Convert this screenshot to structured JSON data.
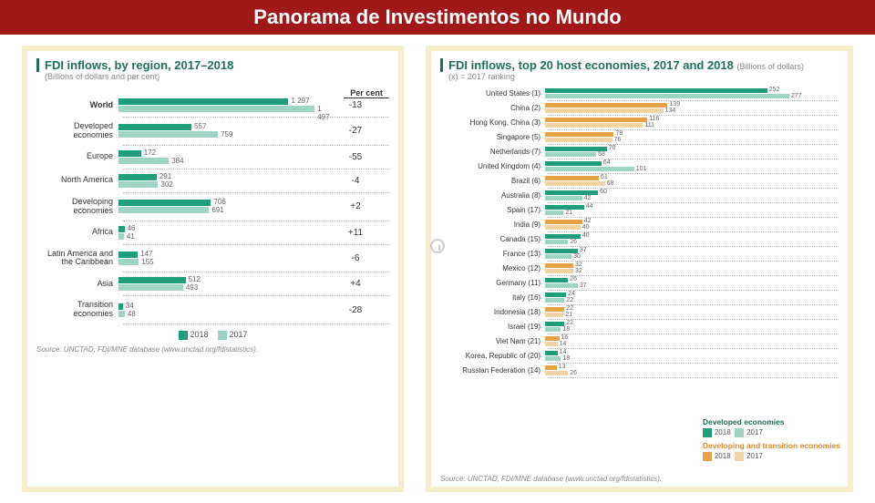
{
  "colors": {
    "header_bg": "#a01818",
    "accent": "#1e6f5c",
    "green2018": "#1e9e7a",
    "green2017": "#9fd3c3",
    "orange2018": "#e8a34a",
    "orange2017": "#f3d4a6",
    "border_cream": "#f5eecb",
    "text_muted": "#888888"
  },
  "header": {
    "title": "Panorama de Investimentos no Mundo"
  },
  "left": {
    "title": "FDI inflows, by region, 2017–2018",
    "subtitle": "(Billions of dollars and per cent)",
    "percent_header": "Per cent",
    "max": 1600,
    "rows": [
      {
        "label": "World",
        "bold": true,
        "v2018": 1297,
        "v2017": 1497,
        "pct": -13
      },
      {
        "label": "Developed\neconomies",
        "v2018": 557,
        "v2017": 759,
        "pct": -27
      },
      {
        "label": "Europe",
        "v2018": 172,
        "v2017": 384,
        "pct": -55
      },
      {
        "label": "North America",
        "v2018": 291,
        "v2017": 302,
        "pct": -4
      },
      {
        "label": "Developing\neconomies",
        "v2018": 706,
        "v2017": 691,
        "pct": 2
      },
      {
        "label": "Africa",
        "v2018": 46,
        "v2017": 41,
        "pct": 11
      },
      {
        "label": "Latin America and\nthe Caribbean",
        "v2018": 147,
        "v2017": 155,
        "pct": -6
      },
      {
        "label": "Asia",
        "v2018": 512,
        "v2017": 493,
        "pct": 4
      },
      {
        "label": "Transition\neconomies",
        "v2018": 34,
        "v2017": 48,
        "pct": -28
      }
    ],
    "legend": [
      {
        "swatch": "#1e9e7a",
        "label": "2018"
      },
      {
        "swatch": "#9fd3c3",
        "label": "2017"
      }
    ],
    "source": "Source: UNCTAD, FDI/MNE database (www.unctad.org/fdistatistics)."
  },
  "right": {
    "title": "FDI inflows, top 20 host economies, 2017 and 2018",
    "title_suffix": "(Billions of dollars)",
    "rank_note": "(x) = 2017 ranking",
    "max": 300,
    "rows": [
      {
        "label": "United States (1)",
        "dev": true,
        "v2018": 252,
        "v2017": 277
      },
      {
        "label": "China (2)",
        "dev": false,
        "v2018": 139,
        "v2017": 134
      },
      {
        "label": "Hong Kong, China (3)",
        "dev": false,
        "v2018": 116,
        "v2017": 111
      },
      {
        "label": "Singapore (5)",
        "dev": false,
        "v2018": 78,
        "v2017": 76
      },
      {
        "label": "Netherlands (7)",
        "dev": true,
        "v2018": 70,
        "v2017": 58
      },
      {
        "label": "United Kingdom (4)",
        "dev": true,
        "v2018": 64,
        "v2017": 101
      },
      {
        "label": "Brazil (6)",
        "dev": false,
        "v2018": 61,
        "v2017": 68
      },
      {
        "label": "Australia (8)",
        "dev": true,
        "v2018": 60,
        "v2017": 42
      },
      {
        "label": "Spain (17)",
        "dev": true,
        "v2018": 44,
        "v2017": 21
      },
      {
        "label": "India (9)",
        "dev": false,
        "v2018": 42,
        "v2017": 40
      },
      {
        "label": "Canada (15)",
        "dev": true,
        "v2018": 40,
        "v2017": 26
      },
      {
        "label": "France (13)",
        "dev": true,
        "v2018": 37,
        "v2017": 30
      },
      {
        "label": "Mexico (12)",
        "dev": false,
        "v2018": 32,
        "v2017": 32
      },
      {
        "label": "Germany (11)",
        "dev": true,
        "v2018": 26,
        "v2017": 37
      },
      {
        "label": "Italy (16)",
        "dev": true,
        "v2018": 24,
        "v2017": 22
      },
      {
        "label": "Indonesia (18)",
        "dev": false,
        "v2018": 22,
        "v2017": 21
      },
      {
        "label": "Israel (19)",
        "dev": true,
        "v2018": 22,
        "v2017": 18
      },
      {
        "label": "Viet Nam (21)",
        "dev": false,
        "v2018": 16,
        "v2017": 14
      },
      {
        "label": "Korea, Republic of (20)",
        "dev": true,
        "v2018": 14,
        "v2017": 18
      },
      {
        "label": "Russian Federation (14)",
        "dev": false,
        "v2018": 13,
        "v2017": 26
      }
    ],
    "legend": {
      "dev_title": "Developed economies",
      "devg_title": "Developing and transition economies",
      "items_dev": [
        {
          "swatch": "#1e9e7a",
          "label": "2018"
        },
        {
          "swatch": "#9fd3c3",
          "label": "2017"
        }
      ],
      "items_devg": [
        {
          "swatch": "#e8a34a",
          "label": "2018"
        },
        {
          "swatch": "#f3d4a6",
          "label": "2017"
        }
      ]
    },
    "source": "Source: UNCTAD, FDI/MNE database (www.unctad.org/fdistatistics)."
  }
}
